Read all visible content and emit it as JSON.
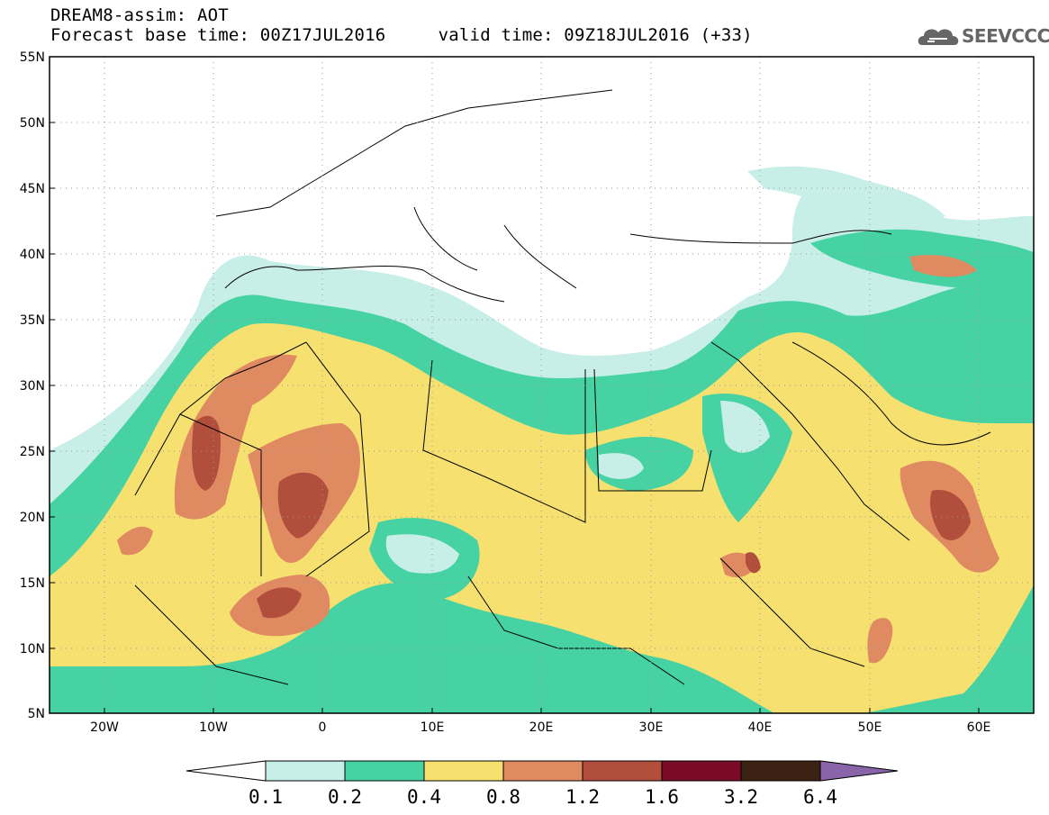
{
  "header": {
    "title": "DREAM8-assim: AOT",
    "subtitle": "Forecast base time: 00Z17JUL2016     valid time: 09Z18JUL2016 (+33)"
  },
  "logo": {
    "text": "SEEVCCC",
    "icon": "cloud-icon"
  },
  "map": {
    "lat_labels": [
      "55N",
      "50N",
      "45N",
      "40N",
      "35N",
      "30N",
      "25N",
      "20N",
      "15N",
      "10N",
      "5N"
    ],
    "lon_labels": [
      "20W",
      "10W",
      "0",
      "10E",
      "20E",
      "30E",
      "40E",
      "50E",
      "60E"
    ],
    "lat_range": [
      5,
      55
    ],
    "lon_range": [
      -25,
      65
    ],
    "grid": "dotted"
  },
  "colorbar": {
    "levels": [
      "0.1",
      "0.2",
      "0.4",
      "0.8",
      "1.2",
      "1.6",
      "3.2",
      "6.4"
    ],
    "colors": [
      "#ffffff",
      "#c8eee8",
      "#46d2a2",
      "#f5e070",
      "#e08a62",
      "#b24e3c",
      "#7a0a25",
      "#3c2212",
      "#8a64a8"
    ]
  }
}
